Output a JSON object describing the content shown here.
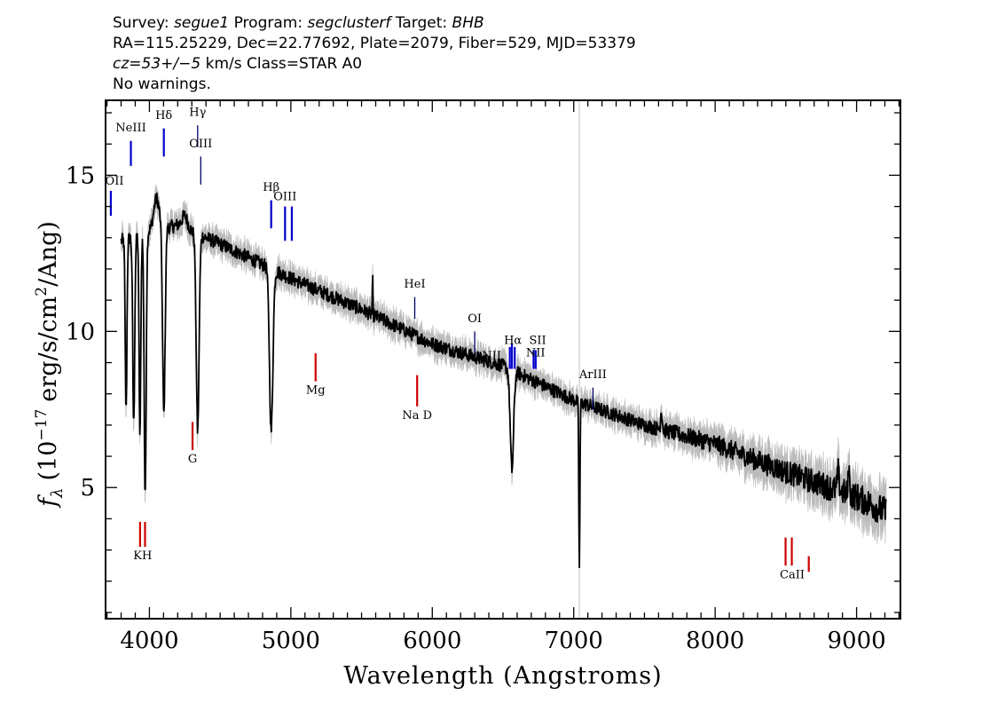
{
  "header": {
    "line1": {
      "survey_label": "Survey:",
      "survey": "segue1",
      "program_label": "Program:",
      "program": "segclusterf",
      "target_label": "Target:",
      "target": "BHB"
    },
    "line2": "RA=115.25229, Dec=22.77692, Plate=2079, Fiber=529, MJD=53379",
    "line3": {
      "cz": "cz=53+/−5",
      "rest": "km/s Class=STAR A0"
    },
    "line4": "No warnings."
  },
  "chart_data": {
    "type": "line",
    "xlabel": "Wavelength (Angstroms)",
    "ylabel_prefix": "f",
    "ylabel_sub": "λ",
    "ylabel_rest_pre": "(10",
    "ylabel_exp": "−17",
    "ylabel_rest_mid": "erg/s/cm",
    "ylabel_sq": "2",
    "ylabel_rest_post": "/Ang)",
    "xlim": [
      3690,
      9310
    ],
    "ylim": [
      0.8,
      17.4
    ],
    "x_ticks": [
      4000,
      5000,
      6000,
      7000,
      8000,
      9000
    ],
    "y_ticks": [
      5,
      10,
      15
    ],
    "x_minor_step": 100,
    "y_minor_step": 1,
    "vertical_reference_line": 7040,
    "colors": {
      "spectrum": "#000000",
      "error_band": "#bbbbbb",
      "emission": "#0000cc",
      "absorption": "#cc0000",
      "reference": "#cccccc"
    },
    "continuum_knots": [
      [
        3800,
        12.9
      ],
      [
        4000,
        13.2
      ],
      [
        4200,
        13.4
      ],
      [
        4500,
        12.8
      ],
      [
        5000,
        11.7
      ],
      [
        5500,
        10.7
      ],
      [
        6000,
        9.6
      ],
      [
        6500,
        8.9
      ],
      [
        7000,
        7.8
      ],
      [
        7500,
        7.0
      ],
      [
        8000,
        6.4
      ],
      [
        8500,
        5.5
      ],
      [
        9000,
        4.7
      ],
      [
        9210,
        4.2
      ]
    ],
    "absorption_features": [
      {
        "center": 3835,
        "depth": 5.5,
        "width": 6
      },
      {
        "center": 3889,
        "depth": 6.0,
        "width": 7
      },
      {
        "center": 3933,
        "depth": 6.5,
        "width": 6
      },
      {
        "center": 3970,
        "depth": 8.5,
        "width": 7
      },
      {
        "center": 4102,
        "depth": 6.0,
        "width": 9
      },
      {
        "center": 4341,
        "depth": 6.3,
        "width": 10
      },
      {
        "center": 4861,
        "depth": 5.2,
        "width": 12
      },
      {
        "center": 6563,
        "depth": 3.2,
        "width": 12
      },
      {
        "center": 7040,
        "depth": 5.2,
        "width": 4
      }
    ],
    "emission_features": [
      {
        "center": 5578,
        "height": 1.2,
        "width": 2
      },
      {
        "center": 4050,
        "height": 1.0,
        "width": 20
      },
      {
        "center": 4250,
        "height": 0.4,
        "width": 20
      },
      {
        "center": 7620,
        "height": 0.6,
        "width": 6
      },
      {
        "center": 8870,
        "height": 0.6,
        "width": 6
      },
      {
        "center": 8945,
        "height": 1.0,
        "width": 4
      }
    ],
    "noise": {
      "amplitude": 0.22,
      "error_base": 0.2,
      "error_red": 0.35
    },
    "line_markers": [
      {
        "label": "OII",
        "x": 3727,
        "y0": 13.7,
        "y1": 14.5,
        "ly": 14.7,
        "color": "blue"
      },
      {
        "label": "NeIII",
        "x": 3869,
        "y0": 15.3,
        "y1": 16.1,
        "ly": 16.4,
        "color": "blue"
      },
      {
        "label": "Hδ",
        "x": 4102,
        "y0": 15.6,
        "y1": 16.5,
        "ly": 16.8,
        "color": "blue"
      },
      {
        "label": "Hγ",
        "x": 4341,
        "y0": 15.9,
        "y1": 16.6,
        "ly": 16.9,
        "color": "dark"
      },
      {
        "label": "OIII",
        "x": 4363,
        "y0": 14.7,
        "y1": 15.6,
        "ly": 15.9,
        "color": "dark"
      },
      {
        "label": "Hβ",
        "x": 4861,
        "y0": 13.3,
        "y1": 14.2,
        "ly": 14.5,
        "color": "blue"
      },
      {
        "label": "OIII",
        "x": 4959,
        "y0": 12.9,
        "y1": 14.0,
        "ly": 14.2,
        "color": "blue"
      },
      {
        "label": "OIII",
        "x": 5007,
        "y0": 12.9,
        "y1": 14.0,
        "ly": null,
        "color": "blue"
      },
      {
        "label": "HeI",
        "x": 5876,
        "y0": 10.4,
        "y1": 11.1,
        "ly": 11.4,
        "color": "dark"
      },
      {
        "label": "OI",
        "x": 6300,
        "y0": 9.3,
        "y1": 10.0,
        "ly": 10.3,
        "color": "dark"
      },
      {
        "label": "NII",
        "x": 6548,
        "y0": 8.8,
        "y1": 9.5,
        "ly": 9.1,
        "color": "blue",
        "lx": 6420
      },
      {
        "label": "Hα",
        "x": 6563,
        "y0": 8.8,
        "y1": 9.6,
        "ly": 9.6,
        "color": "blue",
        "lx": 6570
      },
      {
        "label": "NII",
        "x": 6583,
        "y0": 8.8,
        "y1": 9.5,
        "ly": null,
        "color": "blue"
      },
      {
        "label": "SII",
        "x": 6716,
        "y0": 8.8,
        "y1": 9.4,
        "ly": 9.6,
        "color": "blue",
        "lx": 6745
      },
      {
        "label": "NII",
        "x": 6731,
        "y0": 8.8,
        "y1": 9.4,
        "ly": 9.2,
        "color": "blue",
        "lx": 6730
      },
      {
        "label": "ArIII",
        "x": 7136,
        "y0": 7.5,
        "y1": 8.2,
        "ly": 8.5,
        "color": "dark"
      },
      {
        "label": "KH",
        "x": 3934,
        "y0": 3.1,
        "y1": 3.9,
        "ly": 2.7,
        "color": "red",
        "lx": 3952
      },
      {
        "label": "",
        "x": 3969,
        "y0": 3.1,
        "y1": 3.9,
        "ly": null,
        "color": "red"
      },
      {
        "label": "G",
        "x": 4305,
        "y0": 6.2,
        "y1": 7.1,
        "ly": 5.8,
        "color": "red"
      },
      {
        "label": "Mg",
        "x": 5175,
        "y0": 8.4,
        "y1": 9.3,
        "ly": 8.0,
        "color": "red"
      },
      {
        "label": "Na D",
        "x": 5893,
        "y0": 7.6,
        "y1": 8.6,
        "ly": 7.2,
        "color": "red"
      },
      {
        "label": "CaII",
        "x": 8498,
        "y0": 2.5,
        "y1": 3.4,
        "ly": 2.1,
        "color": "red",
        "lx": 8545
      },
      {
        "label": "",
        "x": 8542,
        "y0": 2.5,
        "y1": 3.4,
        "ly": null,
        "color": "red"
      },
      {
        "label": "",
        "x": 8662,
        "y0": 2.3,
        "y1": 2.8,
        "ly": null,
        "color": "red"
      }
    ]
  }
}
